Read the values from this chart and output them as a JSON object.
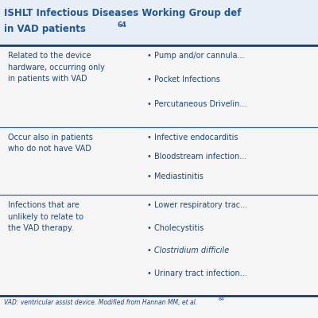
{
  "title_line1": "ISHLT Infectious Diseases Working Group def",
  "title_line2": "in VAD patients",
  "title_sup": "64",
  "title_color": "#1e5799",
  "bg_color": "#f5f5f5",
  "line_color": "#2e6da4",
  "line_color_thick": "#1a3a6e",
  "text_color": "#1e4878",
  "rows": [
    {
      "left_lines": [
        "Related to the device",
        "hardware, occurring only",
        "in patients with VAD"
      ],
      "right_items": [
        "Pump and/or cannula...",
        "Pocket Infections",
        "Percutaneous Drivelin..."
      ],
      "right_italic": [
        false,
        false,
        false
      ]
    },
    {
      "left_lines": [
        "Occur also in patients",
        "who do not have VAD"
      ],
      "right_items": [
        "Infective endocarditis",
        "Bloodstream infection...",
        "Mediastinitis"
      ],
      "right_italic": [
        false,
        false,
        false
      ]
    },
    {
      "left_lines": [
        "Infections that are",
        "unlikely to relate to",
        "the VAD therapy."
      ],
      "right_items": [
        "Lower respiratory trac...",
        "Cholecystitis",
        "Clostridium difficile",
        "Urinary tract infection..."
      ],
      "right_italic": [
        false,
        false,
        true,
        false
      ]
    }
  ],
  "footer_text": "VAD: ventricular assist device. Modified from Hannan MM, et al.",
  "footer_sup": "64",
  "bullet": "•"
}
